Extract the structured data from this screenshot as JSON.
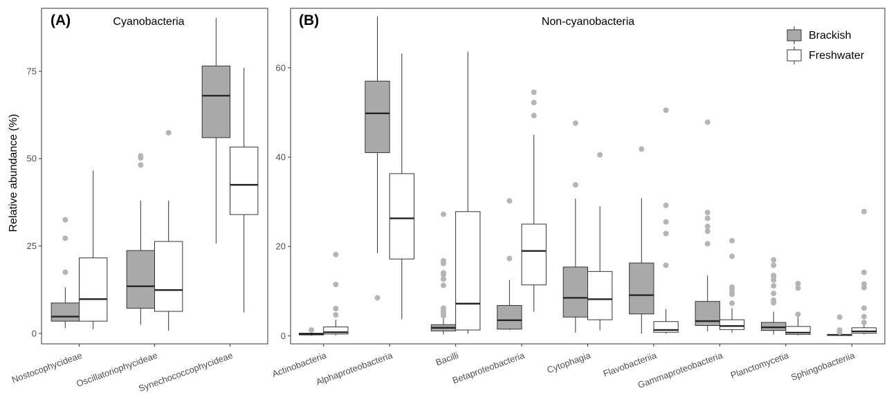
{
  "colors": {
    "brackish": "#a9a9a9",
    "freshwater": "#ffffff",
    "outlier": "#b5b5b5",
    "stroke": "#333333"
  },
  "legend": {
    "items": [
      {
        "label": "Brackish"
      },
      {
        "label": "Freshwater"
      }
    ],
    "placement": "top-right of panel B"
  },
  "chart_data": [
    {
      "type": "box",
      "panel": "(A)",
      "title": "Cyanobacteria",
      "ylabel": "Relative abundance (%)",
      "ylim": [
        -3,
        93
      ],
      "yticks": [
        0,
        25,
        50,
        75
      ],
      "categories": [
        "Nostocophycideae",
        "Oscillatoriophycideae",
        "Synechococcophycideae"
      ],
      "series": [
        {
          "name": "Brackish",
          "boxes": [
            {
              "whisker_low": 1.5,
              "q1": 3.5,
              "median": 4.8,
              "q3": 8.7,
              "whisker_high": 13.2,
              "outliers": [
                17.5,
                27.2,
                32.5
              ]
            },
            {
              "whisker_low": 2.5,
              "q1": 7.2,
              "median": 13.5,
              "q3": 23.7,
              "whisker_high": 38,
              "outliers": [
                48.2,
                50.2,
                50.8
              ]
            },
            {
              "whisker_low": 25.7,
              "q1": 56,
              "median": 68,
              "q3": 76.5,
              "whisker_high": 90.3,
              "outliers": []
            }
          ]
        },
        {
          "name": "Freshwater",
          "boxes": [
            {
              "whisker_low": 1.2,
              "q1": 3.5,
              "median": 9.8,
              "q3": 21.6,
              "whisker_high": 46.6,
              "outliers": []
            },
            {
              "whisker_low": 0.8,
              "q1": 6.3,
              "median": 12.4,
              "q3": 26.3,
              "whisker_high": 38,
              "outliers": [
                57.4
              ]
            },
            {
              "whisker_low": 6,
              "q1": 34,
              "median": 42.5,
              "q3": 53.3,
              "whisker_high": 76,
              "outliers": []
            }
          ]
        }
      ]
    },
    {
      "type": "box",
      "panel": "(B)",
      "title": "Non-cyanobacteria",
      "ylim": [
        -1.8,
        73.3
      ],
      "yticks": [
        0,
        20,
        40,
        60
      ],
      "categories": [
        "Actinobacteria",
        "Alphaproteobacteria",
        "Bacilli",
        "Betaproteobacteria",
        "Cytophagia",
        "Flavobacteriia",
        "Gammaproteobacteria",
        "Planctomycetia",
        "Sphingobacteriia"
      ],
      "series": [
        {
          "name": "Brackish",
          "boxes": [
            {
              "whisker_low": 0,
              "q1": 0.2,
              "median": 0.4,
              "q3": 0.6,
              "whisker_high": 1,
              "outliers": [
                1.3
              ]
            },
            {
              "whisker_low": 18.5,
              "q1": 41,
              "median": 49.8,
              "q3": 57,
              "whisker_high": 71.5,
              "outliers": [
                8.5
              ]
            },
            {
              "whisker_low": 0.3,
              "q1": 1.1,
              "median": 1.8,
              "q3": 2.5,
              "whisker_high": 4,
              "outliers": [
                4.5,
                5,
                5.6,
                6.2,
                11.3,
                12.7,
                13.7,
                14.1,
                16.2,
                16.8,
                27.2
              ]
            },
            {
              "whisker_low": 1.3,
              "q1": 1.5,
              "median": 3.5,
              "q3": 6.8,
              "whisker_high": 12.5,
              "outliers": [
                17.3,
                30.2
              ]
            },
            {
              "whisker_low": 0.7,
              "q1": 4.2,
              "median": 8.5,
              "q3": 15.4,
              "whisker_high": 30.7,
              "outliers": [
                33.8,
                47.6
              ]
            },
            {
              "whisker_low": 0.5,
              "q1": 4.9,
              "median": 9.1,
              "q3": 16.3,
              "whisker_high": 30.8,
              "outliers": [
                41.8
              ]
            },
            {
              "whisker_low": 1,
              "q1": 2.3,
              "median": 3.3,
              "q3": 7.7,
              "whisker_high": 13.5,
              "outliers": [
                20.6,
                23.4,
                24.5,
                26.3,
                27.6,
                47.8
              ]
            },
            {
              "whisker_low": 0.3,
              "q1": 1.2,
              "median": 1.9,
              "q3": 3,
              "whisker_high": 5.4,
              "outliers": [
                7.4,
                8,
                9.5,
                11.2,
                12.5,
                13.2,
                13.5,
                15.8,
                17
              ]
            },
            {
              "whisker_low": 0,
              "q1": 0.1,
              "median": 0.2,
              "q3": 0.3,
              "whisker_high": 0.5,
              "outliers": [
                0.8,
                1.3,
                4.2
              ]
            }
          ]
        },
        {
          "name": "Freshwater",
          "boxes": [
            {
              "whisker_low": 0.1,
              "q1": 0.4,
              "median": 0.8,
              "q3": 2,
              "whisker_high": 3.6,
              "outliers": [
                4.7,
                6.1,
                11.5,
                18.2
              ]
            },
            {
              "whisker_low": 3.7,
              "q1": 17.2,
              "median": 26.3,
              "q3": 36.3,
              "whisker_high": 63.2,
              "outliers": []
            },
            {
              "whisker_low": 0.5,
              "q1": 1.3,
              "median": 7.2,
              "q3": 27.8,
              "whisker_high": 63.6,
              "outliers": []
            },
            {
              "whisker_low": 5.4,
              "q1": 11.4,
              "median": 19,
              "q3": 25,
              "whisker_high": 45,
              "outliers": [
                49.3,
                52.2,
                54.5
              ]
            },
            {
              "whisker_low": 1.2,
              "q1": 3.6,
              "median": 8.2,
              "q3": 14.4,
              "whisker_high": 29,
              "outliers": [
                40.5
              ]
            },
            {
              "whisker_low": 0.5,
              "q1": 0.8,
              "median": 1.3,
              "q3": 3.2,
              "whisker_high": 6,
              "outliers": [
                15.8,
                22.9,
                25.5,
                29.2,
                50.5
              ]
            },
            {
              "whisker_low": 0.7,
              "q1": 1.4,
              "median": 2.2,
              "q3": 3.6,
              "whisker_high": 6.2,
              "outliers": [
                7.3,
                9.3,
                9.8,
                10.4,
                10.9,
                17.8,
                21.3
              ]
            },
            {
              "whisker_low": 0.1,
              "q1": 0.3,
              "median": 0.7,
              "q3": 2.1,
              "whisker_high": 4.2,
              "outliers": [
                4.8,
                10.7,
                11.7
              ]
            },
            {
              "whisker_low": 0.3,
              "q1": 0.6,
              "median": 1,
              "q3": 1.8,
              "whisker_high": 2.6,
              "outliers": [
                3,
                4.3,
                6.2,
                10.8,
                11.6,
                14.2,
                27.8
              ]
            }
          ]
        }
      ]
    }
  ]
}
